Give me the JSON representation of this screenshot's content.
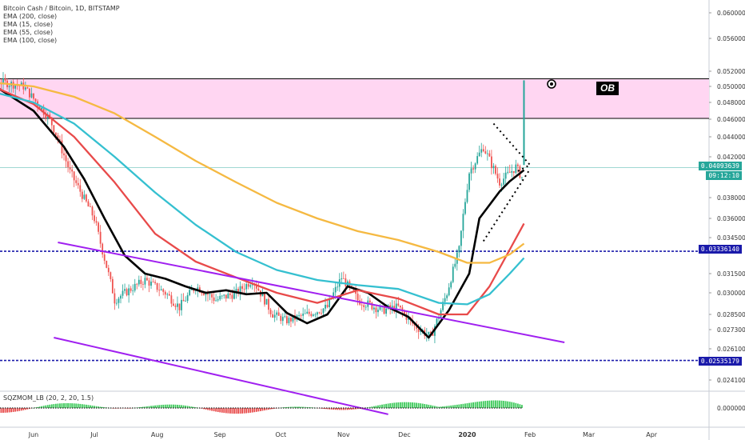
{
  "legend": {
    "title": "Bitcoin Cash / Bitcoin, 1D, BITSTAMP",
    "indicators": [
      "EMA (200, close)",
      "EMA (15, close)",
      "EMA (55, close)",
      "EMA (100, close)"
    ]
  },
  "oscillator": {
    "label": "SQZMOM_LB (20, 2, 20, 1.5)",
    "zero_label": "0.00000000"
  },
  "annotations": {
    "ob_label": "OB"
  },
  "price_tags": {
    "last": "0.04093639",
    "countdown": "09:12:10",
    "level_high": "0.03336140",
    "level_low": "0.02535179"
  },
  "colors": {
    "ema200": "#f5b942",
    "ema15": "#000000",
    "ema55": "#e84a4a",
    "ema100": "#35c0d0",
    "channel": "#a020f0",
    "level": "#1a1aaa",
    "zone": "#ffd6f2",
    "up": "#26a69a",
    "down": "#ef5350",
    "osc_up": "#3cc95a",
    "osc_down": "#e84a4a"
  },
  "chart_data": {
    "type": "line",
    "title": "Bitcoin Cash / Bitcoin, 1D, BITSTAMP",
    "xlabel": "",
    "ylabel": "",
    "ylim": [
      0.0235,
      0.0615
    ],
    "y_ticks": [
      "0.06000000",
      "0.05600000",
      "0.05200000",
      "0.05000000",
      "0.04800000",
      "0.04600000",
      "0.04400000",
      "0.04200000",
      "0.03800000",
      "0.03600000",
      "0.03450000",
      "0.03150000",
      "0.03000000",
      "0.02850000",
      "0.02730000",
      "0.02610000",
      "0.02410000"
    ],
    "x_ticks": [
      "Jun",
      "Jul",
      "Aug",
      "Sep",
      "Oct",
      "Nov",
      "Dec",
      "2020",
      "Feb",
      "Mar",
      "Apr"
    ],
    "x_tick_day": [
      0,
      30,
      61,
      92,
      122,
      153,
      183,
      214,
      245,
      274,
      305
    ],
    "series": [
      {
        "name": "EMA (15, close)",
        "x": [
          -40,
          -20,
          0,
          15,
          25,
          35,
          45,
          55,
          65,
          75,
          85,
          95,
          105,
          115,
          125,
          135,
          145,
          155,
          165,
          175,
          185,
          195,
          205,
          215,
          220,
          230,
          235,
          242
        ],
        "y": [
          0.0508,
          0.0502,
          0.047,
          0.043,
          0.0398,
          0.036,
          0.033,
          0.0315,
          0.0311,
          0.0305,
          0.03,
          0.0302,
          0.0299,
          0.03,
          0.0286,
          0.0278,
          0.0285,
          0.0305,
          0.03,
          0.029,
          0.0283,
          0.0268,
          0.0288,
          0.0315,
          0.036,
          0.0386,
          0.0396,
          0.0407
        ]
      },
      {
        "name": "EMA (55, close)",
        "x": [
          -40,
          -20,
          0,
          20,
          40,
          60,
          80,
          100,
          120,
          140,
          160,
          180,
          200,
          214,
          225,
          235,
          242
        ],
        "y": [
          0.0495,
          0.05,
          0.0478,
          0.044,
          0.0395,
          0.0348,
          0.0325,
          0.0312,
          0.03,
          0.0293,
          0.0302,
          0.0296,
          0.0285,
          0.0285,
          0.0305,
          0.0335,
          0.0356
        ]
      },
      {
        "name": "EMA (100, close)",
        "x": [
          -40,
          -20,
          0,
          20,
          40,
          60,
          80,
          100,
          120,
          140,
          160,
          180,
          200,
          214,
          225,
          235,
          242
        ],
        "y": [
          0.0487,
          0.0493,
          0.048,
          0.0455,
          0.042,
          0.0385,
          0.0355,
          0.0333,
          0.0318,
          0.031,
          0.0306,
          0.0303,
          0.0293,
          0.0292,
          0.0299,
          0.0315,
          0.0328
        ]
      },
      {
        "name": "EMA (200, close)",
        "x": [
          -40,
          -20,
          0,
          20,
          40,
          60,
          80,
          100,
          120,
          140,
          160,
          180,
          200,
          214,
          225,
          235,
          242
        ],
        "y": [
          0.05,
          0.0505,
          0.05,
          0.0487,
          0.0467,
          0.044,
          0.0416,
          0.0395,
          0.0375,
          0.036,
          0.035,
          0.0343,
          0.0333,
          0.0324,
          0.0324,
          0.0331,
          0.034
        ]
      }
    ],
    "levels": [
      {
        "label": "0.03336140",
        "y": 0.0333614
      },
      {
        "label": "0.02535179",
        "y": 0.02535179
      }
    ],
    "zone": {
      "label": "OB",
      "y_top": 0.051,
      "y_bottom": 0.0461
    },
    "channel_upper": {
      "x": [
        12,
        262
      ],
      "y": [
        0.0341,
        0.0265
      ]
    },
    "channel_lower": {
      "x": [
        10,
        175
      ],
      "y": [
        0.0268,
        0.0219
      ]
    },
    "last_price": 0.04093639
  }
}
